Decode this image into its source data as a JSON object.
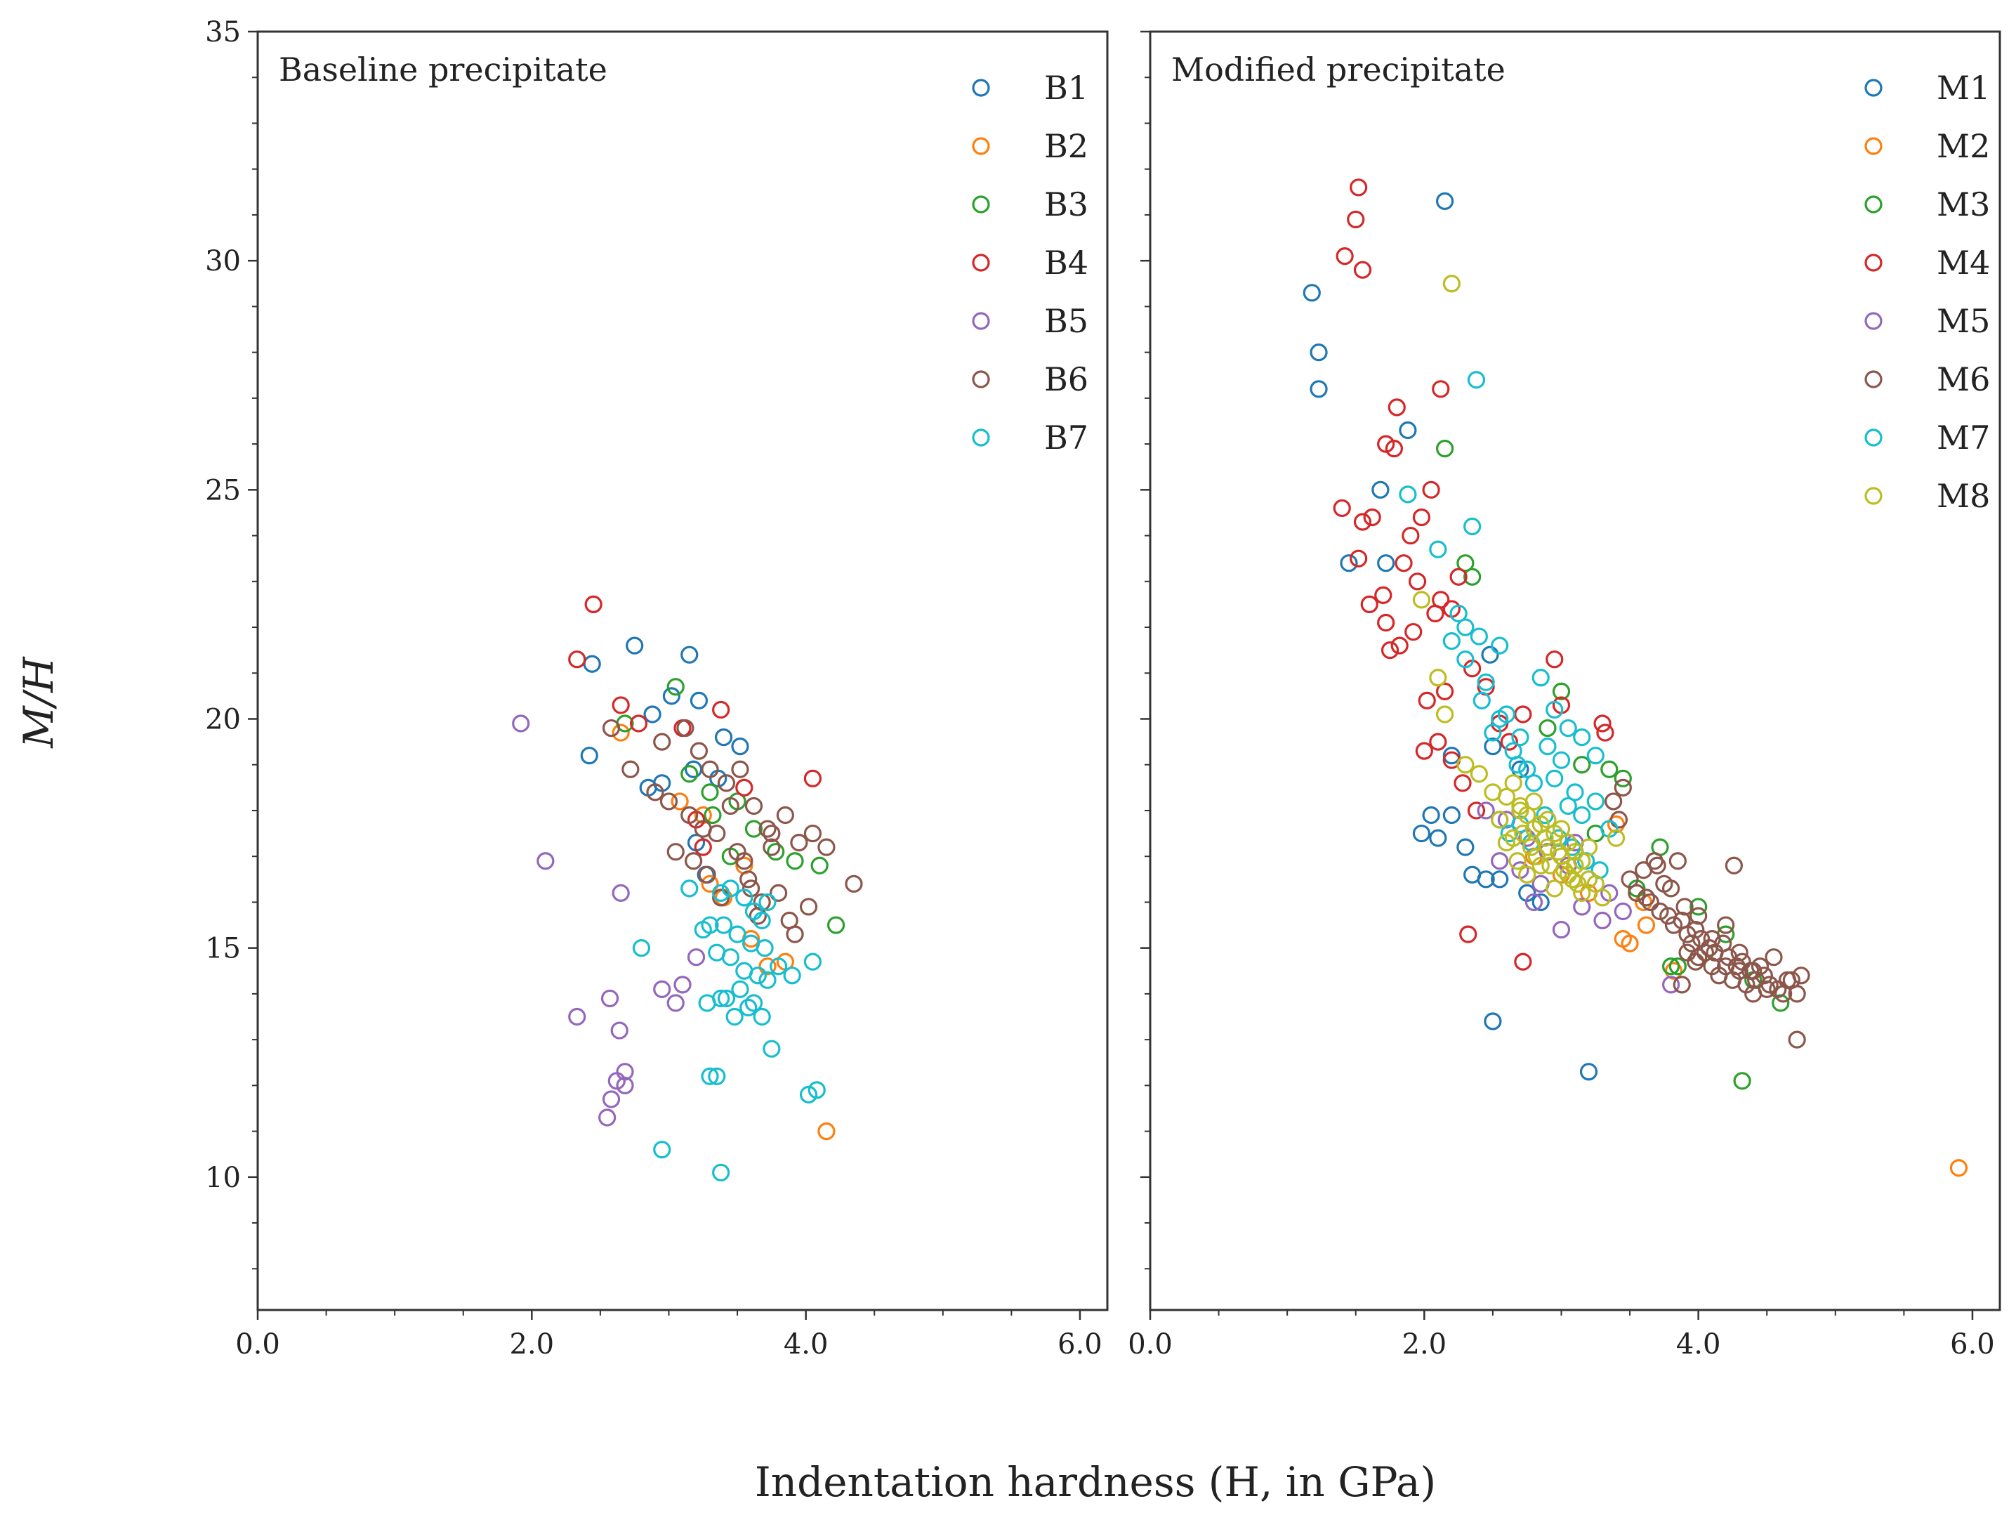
{
  "chart_data": [
    {
      "type": "scatter",
      "title": "Baseline precipitate",
      "xlabel": "Indentation hardness (H, in GPa)",
      "ylabel": "M/H",
      "xlim": [
        0,
        6.2
      ],
      "ylim": [
        7.1,
        35
      ],
      "xticks": [
        "0.0",
        "2.0",
        "4.0",
        "6.0"
      ],
      "yticks": [
        "10",
        "15",
        "20",
        "25",
        "30",
        "35"
      ],
      "legend_position": "top-right",
      "series": [
        {
          "name": "B1",
          "color": "#1f77b4",
          "x": [
            2.44,
            2.75,
            2.88,
            3.02,
            3.15,
            3.22,
            2.95,
            2.42,
            3.2,
            3.4,
            3.52,
            3.36,
            3.18,
            2.85,
            3.27
          ],
          "y": [
            21.2,
            21.6,
            20.1,
            20.5,
            21.4,
            20.4,
            18.6,
            19.2,
            17.3,
            19.6,
            19.4,
            18.7,
            18.9,
            18.5,
            16.6
          ]
        },
        {
          "name": "B2",
          "color": "#ff7f0e",
          "x": [
            2.65,
            3.08,
            3.25,
            3.4,
            3.55,
            3.72,
            3.85,
            4.15,
            3.3,
            3.6
          ],
          "y": [
            19.7,
            18.2,
            17.9,
            16.1,
            16.8,
            14.6,
            14.7,
            11.0,
            16.4,
            15.2
          ]
        },
        {
          "name": "B3",
          "color": "#2ca02c",
          "x": [
            3.05,
            2.68,
            3.15,
            3.32,
            3.5,
            3.62,
            3.78,
            3.92,
            4.1,
            4.22,
            3.45,
            3.3
          ],
          "y": [
            20.7,
            19.9,
            18.8,
            17.9,
            18.2,
            17.6,
            17.1,
            16.9,
            16.8,
            15.5,
            17.0,
            18.4
          ]
        },
        {
          "name": "B4",
          "color": "#d62728",
          "x": [
            2.45,
            2.33,
            2.65,
            2.78,
            3.1,
            3.38,
            3.55,
            4.05,
            3.2,
            3.25
          ],
          "y": [
            22.5,
            21.3,
            20.3,
            19.9,
            19.8,
            20.2,
            18.5,
            18.7,
            17.8,
            17.2
          ]
        },
        {
          "name": "B5",
          "color": "#9467bd",
          "x": [
            1.92,
            2.1,
            2.65,
            2.57,
            2.33,
            2.64,
            2.95,
            3.1,
            3.05,
            3.2,
            2.68,
            2.62,
            2.58,
            2.55,
            2.68
          ],
          "y": [
            19.9,
            16.9,
            16.2,
            13.9,
            13.5,
            13.2,
            14.1,
            14.2,
            13.8,
            14.8,
            12.3,
            12.1,
            11.7,
            11.3,
            12.0
          ]
        },
        {
          "name": "B6",
          "color": "#8c564b",
          "x": [
            2.58,
            2.72,
            2.95,
            3.12,
            3.22,
            3.3,
            3.42,
            3.52,
            3.62,
            3.75,
            3.85,
            3.95,
            4.05,
            4.15,
            4.35,
            3.05,
            3.18,
            3.28,
            3.38,
            3.5,
            3.58,
            3.68,
            3.8,
            3.92,
            4.02,
            3.0,
            3.15,
            3.25,
            3.45,
            3.55,
            3.65,
            3.72,
            3.88,
            2.9,
            3.35,
            3.6,
            3.75
          ],
          "y": [
            19.8,
            18.9,
            19.5,
            19.8,
            19.3,
            18.9,
            18.6,
            18.9,
            18.1,
            17.5,
            17.9,
            17.3,
            17.5,
            17.2,
            16.4,
            17.1,
            16.9,
            16.6,
            16.1,
            17.1,
            16.5,
            16.0,
            16.2,
            15.3,
            15.9,
            18.2,
            17.9,
            17.6,
            18.1,
            16.9,
            15.7,
            17.6,
            15.6,
            18.4,
            17.5,
            16.3,
            17.2
          ]
        },
        {
          "name": "B7",
          "color": "#17becf",
          "x": [
            3.38,
            3.45,
            3.55,
            3.62,
            3.68,
            3.72,
            3.25,
            3.3,
            3.4,
            3.5,
            3.6,
            3.7,
            3.8,
            3.9,
            4.05,
            2.8,
            3.15,
            3.35,
            3.45,
            3.55,
            3.65,
            3.28,
            3.38,
            3.48,
            3.58,
            3.68,
            3.75,
            3.3,
            3.35,
            4.02,
            4.08,
            2.95,
            3.38,
            3.42,
            3.52,
            3.62,
            3.72
          ],
          "y": [
            16.2,
            16.3,
            16.1,
            15.8,
            15.6,
            16.0,
            15.4,
            15.5,
            15.5,
            15.3,
            15.1,
            15.0,
            14.6,
            14.4,
            14.7,
            15.0,
            16.3,
            14.9,
            14.8,
            14.5,
            14.4,
            13.8,
            13.9,
            13.5,
            13.7,
            13.5,
            12.8,
            12.2,
            12.2,
            11.8,
            11.9,
            10.6,
            10.1,
            13.9,
            14.1,
            13.8,
            14.3
          ]
        }
      ]
    },
    {
      "type": "scatter",
      "title": "Modified precipitate",
      "xlabel": "Indentation hardness (H, in GPa)",
      "ylabel": "M/H",
      "xlim": [
        0,
        6.2
      ],
      "ylim": [
        7.1,
        35
      ],
      "xticks": [
        "0.0",
        "2.0",
        "4.0",
        "6.0"
      ],
      "yticks": [
        "10",
        "15",
        "20",
        "25",
        "30",
        "35"
      ],
      "legend_position": "top-right",
      "series": [
        {
          "name": "M1",
          "color": "#1f77b4",
          "x": [
            2.15,
            1.18,
            1.23,
            1.23,
            1.88,
            1.68,
            1.45,
            2.5,
            3.2,
            1.98,
            2.1,
            2.3,
            2.45,
            2.55,
            2.75,
            2.85,
            2.35,
            2.5,
            2.7,
            2.2,
            2.05,
            1.72,
            2.2,
            2.48
          ],
          "y": [
            31.3,
            29.3,
            28.0,
            27.2,
            26.3,
            25.0,
            23.4,
            13.4,
            12.3,
            17.5,
            17.4,
            17.2,
            16.5,
            16.5,
            16.2,
            16.0,
            16.6,
            19.4,
            18.9,
            19.2,
            17.9,
            23.4,
            17.9,
            21.4
          ]
        },
        {
          "name": "M2",
          "color": "#ff7f0e",
          "x": [
            5.9,
            3.45,
            3.5,
            3.6,
            3.82,
            2.8,
            3.0,
            3.2,
            3.4,
            3.62
          ],
          "y": [
            10.2,
            15.2,
            15.1,
            16.0,
            14.5,
            17.0,
            16.6,
            16.2,
            17.7,
            15.5
          ]
        },
        {
          "name": "M3",
          "color": "#2ca02c",
          "x": [
            2.15,
            2.3,
            2.35,
            3.35,
            3.45,
            3.72,
            3.8,
            3.85,
            4.0,
            4.2,
            4.4,
            4.6,
            4.32,
            3.0,
            3.15,
            3.55,
            3.25,
            2.9
          ],
          "y": [
            25.9,
            23.4,
            23.1,
            18.9,
            18.7,
            17.2,
            14.6,
            14.6,
            15.9,
            15.3,
            14.3,
            13.8,
            12.1,
            20.6,
            19.0,
            16.3,
            17.5,
            19.8
          ]
        },
        {
          "name": "M4",
          "color": "#d62728",
          "x": [
            1.52,
            1.5,
            1.42,
            1.55,
            2.12,
            1.8,
            1.72,
            1.78,
            1.4,
            1.55,
            1.62,
            1.9,
            1.98,
            2.05,
            1.85,
            1.95,
            2.08,
            2.12,
            2.2,
            2.25,
            1.6,
            1.7,
            1.75,
            1.82,
            1.92,
            2.02,
            2.15,
            2.35,
            2.45,
            2.55,
            2.72,
            2.95,
            3.0,
            3.3,
            3.32,
            2.32,
            2.72,
            2.2,
            2.0,
            1.52,
            1.72,
            2.1,
            2.28,
            2.38,
            2.62
          ],
          "y": [
            31.6,
            30.9,
            30.1,
            29.8,
            27.2,
            26.8,
            26.0,
            25.9,
            24.6,
            24.3,
            24.4,
            24.0,
            24.4,
            25.0,
            23.4,
            23.0,
            22.3,
            22.6,
            22.4,
            23.1,
            22.5,
            22.7,
            21.5,
            21.6,
            21.9,
            20.4,
            20.6,
            21.1,
            20.7,
            19.9,
            20.1,
            21.3,
            20.3,
            19.9,
            19.7,
            15.3,
            14.7,
            19.1,
            19.3,
            23.5,
            22.1,
            19.5,
            18.6,
            18.0,
            19.5
          ]
        },
        {
          "name": "M5",
          "color": "#9467bd",
          "x": [
            2.45,
            2.6,
            2.75,
            2.9,
            3.05,
            3.2,
            3.35,
            2.55,
            2.7,
            2.85,
            3.0,
            3.15,
            3.3,
            3.45,
            2.8,
            3.1,
            3.8
          ],
          "y": [
            18.0,
            17.8,
            17.4,
            17.1,
            16.8,
            16.5,
            16.2,
            16.9,
            16.7,
            16.4,
            15.4,
            15.9,
            15.6,
            15.8,
            16.0,
            17.3,
            14.2
          ]
        },
        {
          "name": "M6",
          "color": "#8c564b",
          "x": [
            3.55,
            3.65,
            3.72,
            3.78,
            3.82,
            3.88,
            3.92,
            3.98,
            4.02,
            4.08,
            4.12,
            4.18,
            4.22,
            4.28,
            4.32,
            4.38,
            4.42,
            4.48,
            4.52,
            4.58,
            4.62,
            4.68,
            4.72,
            4.75,
            3.6,
            3.7,
            3.75,
            3.85,
            3.9,
            3.95,
            4.0,
            4.05,
            4.1,
            4.15,
            4.2,
            4.25,
            4.3,
            4.35,
            4.4,
            4.45,
            4.5,
            4.55,
            4.65,
            3.5,
            3.62,
            3.8,
            3.92,
            4.0,
            4.1,
            4.2,
            4.3,
            4.4,
            4.26,
            4.72,
            3.98,
            3.88,
            3.68,
            3.45,
            3.38,
            3.42
          ],
          "y": [
            16.2,
            16.0,
            15.8,
            15.7,
            15.5,
            15.6,
            15.3,
            15.4,
            15.2,
            15.0,
            14.9,
            15.1,
            14.8,
            14.6,
            14.7,
            14.5,
            14.3,
            14.4,
            14.2,
            14.1,
            14.0,
            14.3,
            14.0,
            14.4,
            16.7,
            16.8,
            16.4,
            16.9,
            15.9,
            15.1,
            14.8,
            14.9,
            14.6,
            14.4,
            15.5,
            14.3,
            14.5,
            14.2,
            14.0,
            14.6,
            14.1,
            14.8,
            14.3,
            16.5,
            16.1,
            16.3,
            14.9,
            15.7,
            15.2,
            14.6,
            14.9,
            14.5,
            16.8,
            13.0,
            14.7,
            14.2,
            16.9,
            18.5,
            18.2,
            17.8
          ]
        },
        {
          "name": "M7",
          "color": "#17becf",
          "x": [
            2.38,
            1.88,
            2.35,
            2.1,
            2.25,
            2.3,
            2.4,
            2.55,
            2.45,
            2.6,
            2.7,
            2.85,
            2.95,
            3.05,
            3.15,
            3.25,
            2.9,
            3.0,
            3.1,
            2.5,
            2.65,
            2.75,
            2.8,
            2.95,
            3.05,
            3.15,
            3.25,
            3.35,
            2.55,
            2.62,
            2.7,
            2.78,
            2.88,
            2.98,
            3.08,
            3.18,
            3.28,
            2.2,
            2.3,
            2.42,
            2.55,
            2.68
          ],
          "y": [
            27.4,
            24.9,
            24.2,
            23.7,
            22.3,
            22.0,
            21.8,
            21.6,
            20.8,
            20.1,
            19.6,
            20.9,
            20.2,
            19.8,
            19.6,
            19.2,
            19.4,
            19.1,
            18.4,
            19.7,
            19.3,
            18.9,
            18.6,
            18.7,
            18.1,
            17.9,
            18.2,
            17.6,
            17.8,
            17.5,
            17.7,
            17.3,
            17.9,
            17.4,
            17.2,
            16.9,
            16.7,
            21.7,
            21.3,
            20.4,
            20.0,
            19.0
          ]
        },
        {
          "name": "M8",
          "color": "#bcbd22",
          "x": [
            2.2,
            1.98,
            2.1,
            2.15,
            2.3,
            2.4,
            2.5,
            2.6,
            2.65,
            2.7,
            2.75,
            2.8,
            2.85,
            2.9,
            2.95,
            3.0,
            3.05,
            3.1,
            3.15,
            3.2,
            2.72,
            2.78,
            2.82,
            2.88,
            2.92,
            2.98,
            3.02,
            3.08,
            3.12,
            2.6,
            2.68,
            2.75,
            2.85,
            2.95,
            3.05,
            3.15,
            3.25,
            2.7,
            2.8,
            2.9,
            3.0,
            3.1,
            3.2,
            3.3,
            2.55,
            2.65,
            3.4
          ],
          "y": [
            29.5,
            22.6,
            20.9,
            20.1,
            19.0,
            18.8,
            18.4,
            18.3,
            18.6,
            18.1,
            17.9,
            18.2,
            17.7,
            17.8,
            17.5,
            17.6,
            17.3,
            17.1,
            16.9,
            17.2,
            17.5,
            17.2,
            17.0,
            17.4,
            16.8,
            17.1,
            16.7,
            16.5,
            16.4,
            17.3,
            16.9,
            16.6,
            16.8,
            16.3,
            16.6,
            16.2,
            16.4,
            18.0,
            17.6,
            17.2,
            17.0,
            16.8,
            16.5,
            16.1,
            17.8,
            17.4,
            17.4
          ]
        }
      ]
    }
  ]
}
